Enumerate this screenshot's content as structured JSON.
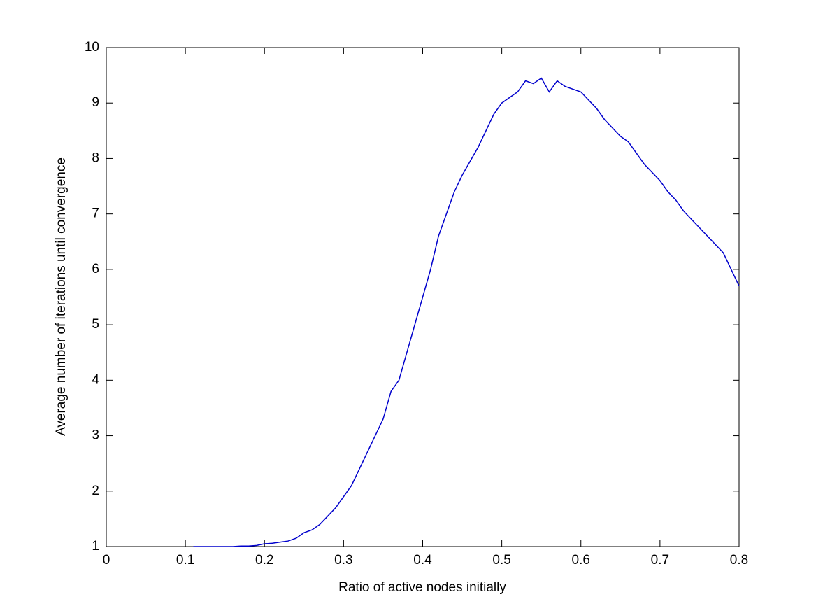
{
  "chart_data": {
    "type": "line",
    "xlabel": "Ratio of active nodes initially",
    "ylabel": "Average number of iterations until convergence",
    "x": [
      0.11,
      0.12,
      0.13,
      0.14,
      0.15,
      0.16,
      0.17,
      0.18,
      0.19,
      0.2,
      0.21,
      0.22,
      0.23,
      0.24,
      0.25,
      0.26,
      0.27,
      0.28,
      0.29,
      0.3,
      0.31,
      0.32,
      0.33,
      0.34,
      0.35,
      0.36,
      0.37,
      0.38,
      0.39,
      0.4,
      0.41,
      0.42,
      0.43,
      0.44,
      0.45,
      0.46,
      0.47,
      0.48,
      0.49,
      0.5,
      0.51,
      0.52,
      0.53,
      0.54,
      0.55,
      0.56,
      0.57,
      0.58,
      0.59,
      0.6,
      0.61,
      0.62,
      0.63,
      0.64,
      0.65,
      0.66,
      0.67,
      0.68,
      0.69,
      0.7,
      0.71,
      0.72,
      0.73,
      0.74,
      0.75,
      0.76,
      0.77,
      0.78,
      0.79,
      0.8
    ],
    "series": [
      {
        "color": "#0000cc",
        "values": [
          1.0,
          1.0,
          1.0,
          1.0,
          1.0,
          1.0,
          1.01,
          1.01,
          1.02,
          1.05,
          1.06,
          1.08,
          1.1,
          1.15,
          1.25,
          1.3,
          1.4,
          1.55,
          1.7,
          1.9,
          2.1,
          2.4,
          2.7,
          3.0,
          3.3,
          3.8,
          4.0,
          4.5,
          5.0,
          5.5,
          6.0,
          6.6,
          7.0,
          7.4,
          7.7,
          7.95,
          8.2,
          8.5,
          8.8,
          9.0,
          9.1,
          9.2,
          9.4,
          9.35,
          9.45,
          9.2,
          9.4,
          9.3,
          9.25,
          9.2,
          9.05,
          8.9,
          8.7,
          8.55,
          8.4,
          8.3,
          8.1,
          7.9,
          7.75,
          7.6,
          7.4,
          7.25,
          7.05,
          6.9,
          6.75,
          6.6,
          6.45,
          6.3,
          6.0,
          5.7
        ]
      }
    ],
    "xlim": [
      0,
      0.8
    ],
    "xticks": [
      0,
      0.1,
      0.2,
      0.3,
      0.4,
      0.5,
      0.6,
      0.7,
      0.8
    ],
    "ylim": [
      1,
      10
    ],
    "yticks": [
      1,
      2,
      3,
      4,
      5,
      6,
      7,
      8,
      9,
      10
    ]
  }
}
